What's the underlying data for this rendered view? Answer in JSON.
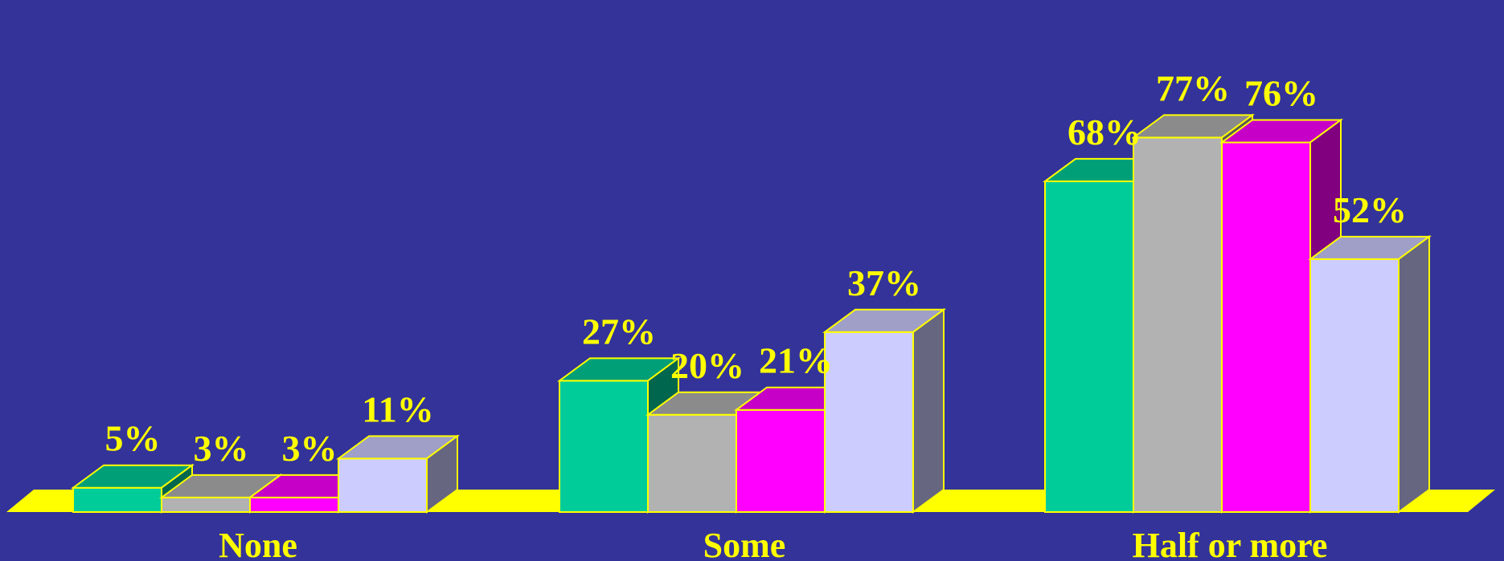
{
  "chart_data": {
    "type": "bar",
    "categories": [
      "None",
      "Some",
      "Half or more"
    ],
    "series": [
      {
        "values": [
          5,
          27,
          68
        ],
        "color": "#00CC99"
      },
      {
        "values": [
          3,
          20,
          77
        ],
        "color": "#B2B2B2"
      },
      {
        "values": [
          3,
          21,
          76
        ],
        "color": "#FF00FF"
      },
      {
        "values": [
          11,
          37,
          52
        ],
        "color": "#CCCCFF"
      }
    ],
    "value_labels": [
      [
        "5%",
        "27%",
        "68%"
      ],
      [
        "3%",
        "20%",
        "77%"
      ],
      [
        "3%",
        "21%",
        "76%"
      ],
      [
        "11%",
        "37%",
        "52%"
      ]
    ],
    "ylim": [
      0,
      80
    ],
    "grid": false,
    "style": "3d-column",
    "colors": {
      "background": "#333399",
      "floor": "#FFFF00",
      "outline": "#FFFF00",
      "labels": "#FFFF00"
    }
  }
}
